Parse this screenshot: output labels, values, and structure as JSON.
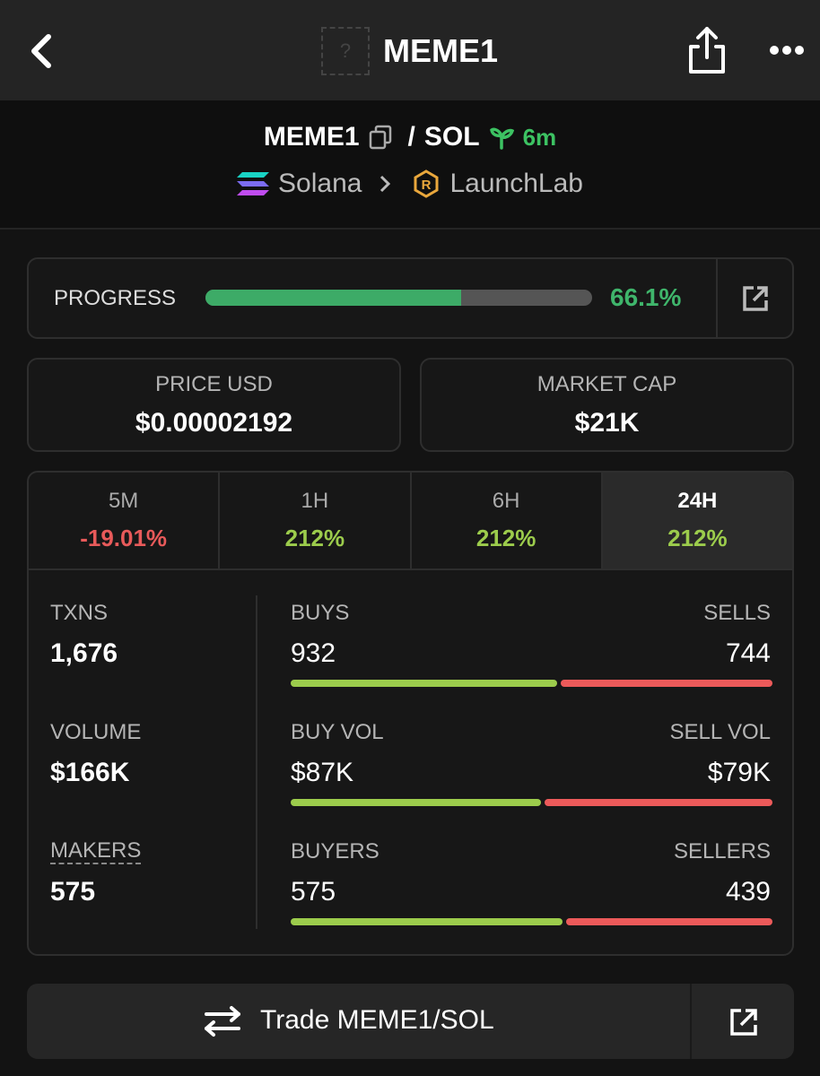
{
  "nav": {
    "title": "MEME1",
    "placeholder": "?"
  },
  "pair": {
    "base": "MEME1",
    "separator": "/",
    "quote": "SOL",
    "age": "6m",
    "chain": "Solana",
    "dex": "LaunchLab"
  },
  "progress": {
    "label": "PROGRESS",
    "percent": {
      "value": 66.1,
      "label": "66.1%"
    }
  },
  "price": {
    "label": "PRICE USD",
    "value": "$0.00002192"
  },
  "market_cap": {
    "label": "MARKET CAP",
    "value": "$21K"
  },
  "timeframes": [
    {
      "label": "5M",
      "change": "-19.01%"
    },
    {
      "label": "1H",
      "change": "212%"
    },
    {
      "label": "6H",
      "change": "212%"
    },
    {
      "label": "24H",
      "change": "212%"
    }
  ],
  "selected_timeframe": 3,
  "stats": [
    {
      "label": "TXNS",
      "total": {
        "value": 1676,
        "label": "1,676"
      },
      "left_label": "BUYS",
      "left": 932,
      "right_label": "SELLS",
      "right": 744
    },
    {
      "label": "VOLUME",
      "total": {
        "value": 166000,
        "label": "$166K"
      },
      "left_label": "BUY VOL",
      "left": {
        "value": 87000,
        "label": "$87K"
      },
      "right_label": "SELL VOL",
      "right": {
        "value": 79000,
        "label": "$79K"
      }
    },
    {
      "label": "MAKERS",
      "total": 575,
      "left_label": "BUYERS",
      "left": 575,
      "right_label": "SELLERS",
      "right": 439
    }
  ],
  "trade_button": "Trade MEME1/SOL"
}
